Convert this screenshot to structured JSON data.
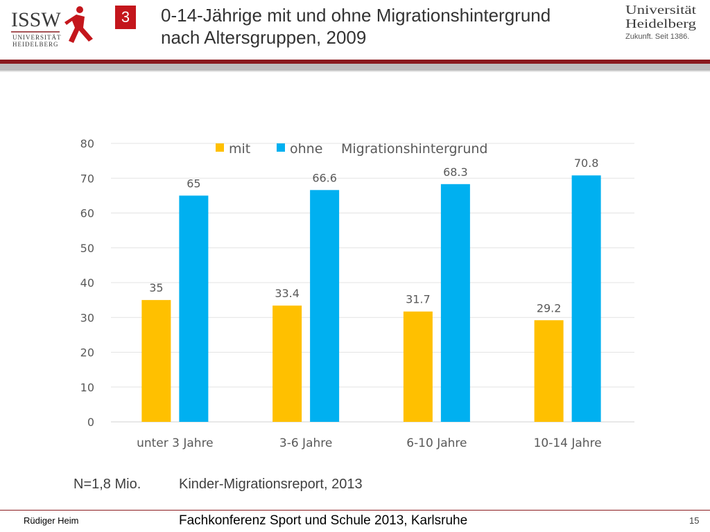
{
  "header": {
    "slide_number": "3",
    "title_line1": "0-14-Jährige mit und ohne Migrationshintergrund",
    "title_line2": "nach Altersgruppen, 2009",
    "issw_logo_text": "ISSW",
    "issw_logo_sub1": "UNIVERSITÄT",
    "issw_logo_sub2": "HEIDELBERG",
    "uni_logo_line1": "Universität",
    "uni_logo_line2": "Heidelberg",
    "uni_logo_line3": "Zukunft. Seit 1386."
  },
  "chart_data": {
    "type": "bar",
    "categories": [
      "unter 3 Jahre",
      "3-6 Jahre",
      "6-10 Jahre",
      "10-14 Jahre"
    ],
    "series": [
      {
        "name": "mit",
        "values": [
          35,
          33.4,
          31.7,
          29.2
        ],
        "color": "#FFC000"
      },
      {
        "name": "ohne",
        "values": [
          65,
          66.6,
          68.3,
          70.8
        ],
        "color": "#00B0F0"
      }
    ],
    "legend_suffix": "Migrationshintergrund",
    "ylim": [
      0,
      80
    ],
    "yticks": [
      0,
      10,
      20,
      30,
      40,
      50,
      60,
      70,
      80
    ],
    "grid": true,
    "legend_position": "top"
  },
  "notes": {
    "left": "N=1,8 Mio.",
    "right": "Kinder-Migrationsreport, 2013"
  },
  "footer": {
    "author": "Rüdiger Heim",
    "event": "Fachkonferenz Sport und Schule 2013, Karlsruhe",
    "page": "15"
  },
  "colors": {
    "accent_red": "#C4161C",
    "rule_red": "#8A1A1E",
    "series_mit": "#FFC000",
    "series_ohne": "#00B0F0"
  }
}
